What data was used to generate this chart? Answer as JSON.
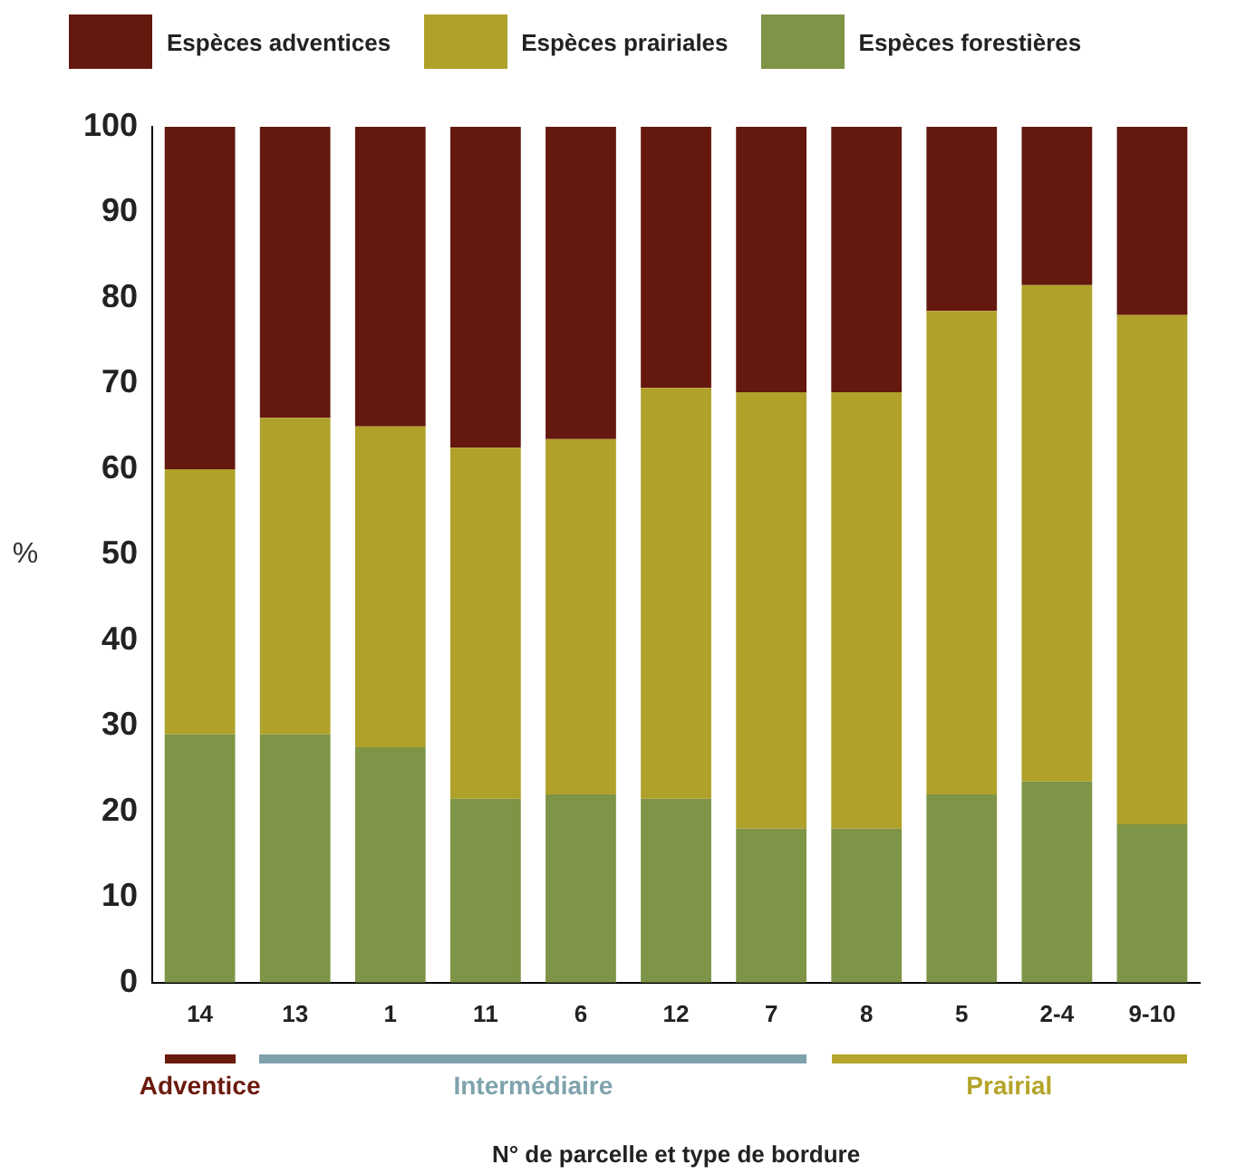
{
  "chart_data": {
    "type": "bar",
    "stacked": true,
    "categories": [
      "14",
      "13",
      "1",
      "11",
      "6",
      "12",
      "7",
      "8",
      "5",
      "2-4",
      "9-10"
    ],
    "series": [
      {
        "name": "Espèces forestières",
        "color": "#7e9446",
        "values": [
          29,
          29,
          27.5,
          21.5,
          22,
          21.5,
          18,
          18,
          22,
          23.5,
          18.5
        ]
      },
      {
        "name": "Espèces prairiales",
        "color": "#b0a12a",
        "values": [
          31,
          37,
          37.5,
          41,
          41.5,
          48,
          51,
          51,
          56.5,
          58,
          59.5
        ]
      },
      {
        "name": "Espèces adventices",
        "color": "#64180e",
        "values": [
          40,
          34,
          35,
          37.5,
          36.5,
          30.5,
          31,
          31,
          21.5,
          18.5,
          22
        ]
      }
    ],
    "ylim": [
      0,
      100
    ],
    "yticks": [
      0,
      10,
      20,
      30,
      40,
      50,
      60,
      70,
      80,
      90,
      100
    ],
    "ylabel": "%",
    "xlabel": "N° de parcelle et type de bordure",
    "grid": false,
    "legend": "top",
    "annotations": [
      "Adventice",
      "Intermédiaire",
      "Prairial"
    ]
  }
}
